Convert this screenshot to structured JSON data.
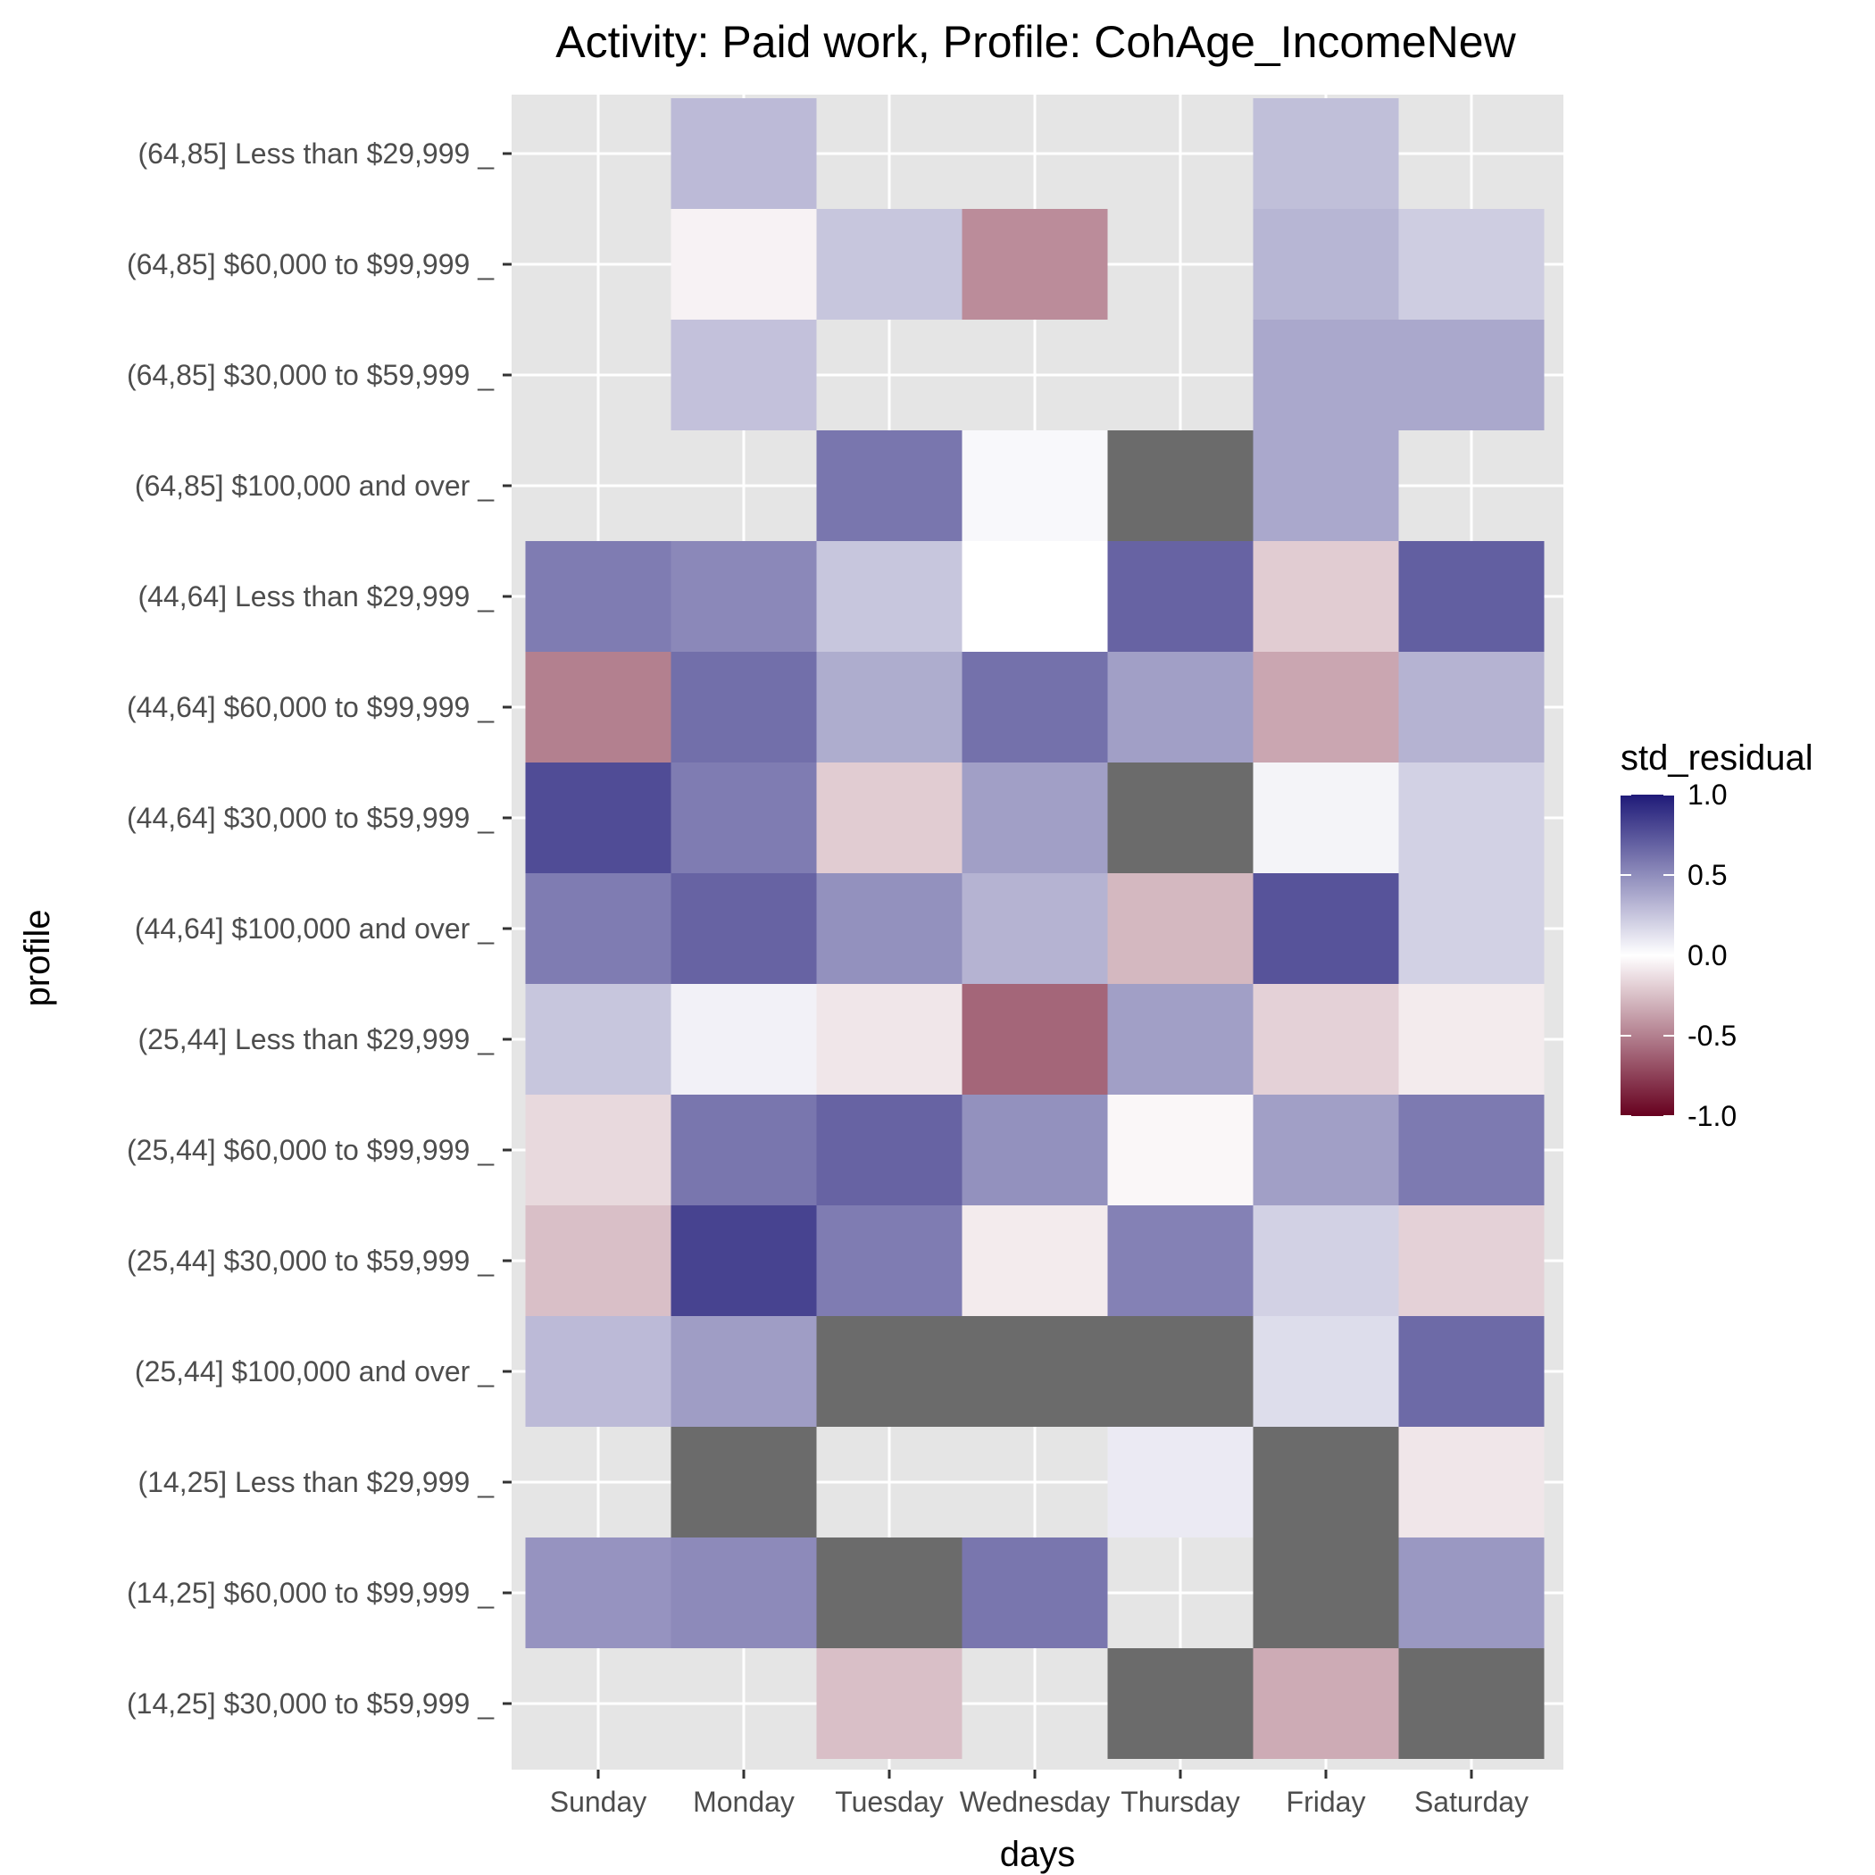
{
  "chart_data": {
    "type": "heatmap",
    "title": "Activity: Paid work, Profile: CohAge_IncomeNew",
    "xlabel": "days",
    "ylabel": "profile",
    "x": [
      "Sunday",
      "Monday",
      "Tuesday",
      "Wednesday",
      "Thursday",
      "Friday",
      "Saturday"
    ],
    "y": [
      "(64,85] Less than $29,999 _",
      "(64,85] $60,000 to $99,999 _",
      "(64,85] $30,000 to $59,999 _",
      "(64,85] $100,000 and over _",
      "(44,64] Less than $29,999 _",
      "(44,64] $60,000 to $99,999 _",
      "(44,64] $30,000 to $59,999 _",
      "(44,64] $100,000 and over _",
      "(25,44] Less than $29,999 _",
      "(25,44] $60,000 to $99,999 _",
      "(25,44] $30,000 to $59,999 _",
      "(25,44] $100,000 and over _",
      "(14,25] Less than $29,999 _",
      "(14,25] $60,000 to $99,999 _",
      "(14,25] $30,000 to $59,999 _"
    ],
    "values": [
      [
        "empty",
        0.3,
        "empty",
        "empty",
        "empty",
        0.28,
        "empty"
      ],
      [
        "empty",
        -0.05,
        0.25,
        -0.45,
        "empty",
        0.32,
        0.22
      ],
      [
        "empty",
        0.27,
        "empty",
        "empty",
        "empty",
        0.38,
        0.38
      ],
      [
        "empty",
        "empty",
        0.6,
        0.03,
        "NA",
        0.38,
        "empty"
      ],
      [
        0.57,
        0.52,
        0.25,
        0.0,
        0.68,
        -0.2,
        0.7
      ],
      [
        -0.5,
        0.63,
        0.36,
        0.62,
        0.42,
        -0.35,
        0.33
      ],
      [
        0.78,
        0.57,
        -0.2,
        0.42,
        "NA",
        0.05,
        0.2
      ],
      [
        0.57,
        0.68,
        0.48,
        0.33,
        -0.28,
        0.75,
        0.2
      ],
      [
        0.25,
        0.06,
        -0.1,
        -0.6,
        0.42,
        -0.18,
        -0.08
      ],
      [
        -0.15,
        0.6,
        0.68,
        0.48,
        -0.03,
        0.42,
        0.58
      ],
      [
        -0.25,
        0.82,
        0.57,
        -0.08,
        0.55,
        0.2,
        -0.18
      ],
      [
        0.3,
        0.43,
        "NA",
        "NA",
        "NA",
        0.15,
        0.65
      ],
      [
        "empty",
        "NA",
        "empty",
        "empty",
        0.09,
        "NA",
        -0.1
      ],
      [
        0.47,
        0.51,
        "NA",
        0.6,
        "empty",
        "NA",
        0.45
      ],
      [
        "empty",
        "empty",
        -0.25,
        "empty",
        "NA",
        -0.33,
        "NA"
      ]
    ],
    "legend": {
      "title": "std_residual",
      "ticks": [
        "1.0",
        "0.5",
        "0.0",
        "-0.5",
        "-1.0"
      ],
      "tick_values": [
        1.0,
        0.5,
        0.0,
        -0.5,
        -1.0
      ],
      "placement": "right"
    },
    "scale": {
      "low_color": "#67001f",
      "mid_color": "#ffffff",
      "high_color": "#1f1a78",
      "na_color": "#6b6b6b",
      "min": -1.0,
      "max": 1.0
    },
    "panel_background": "#e5e5e5",
    "grid": true
  }
}
